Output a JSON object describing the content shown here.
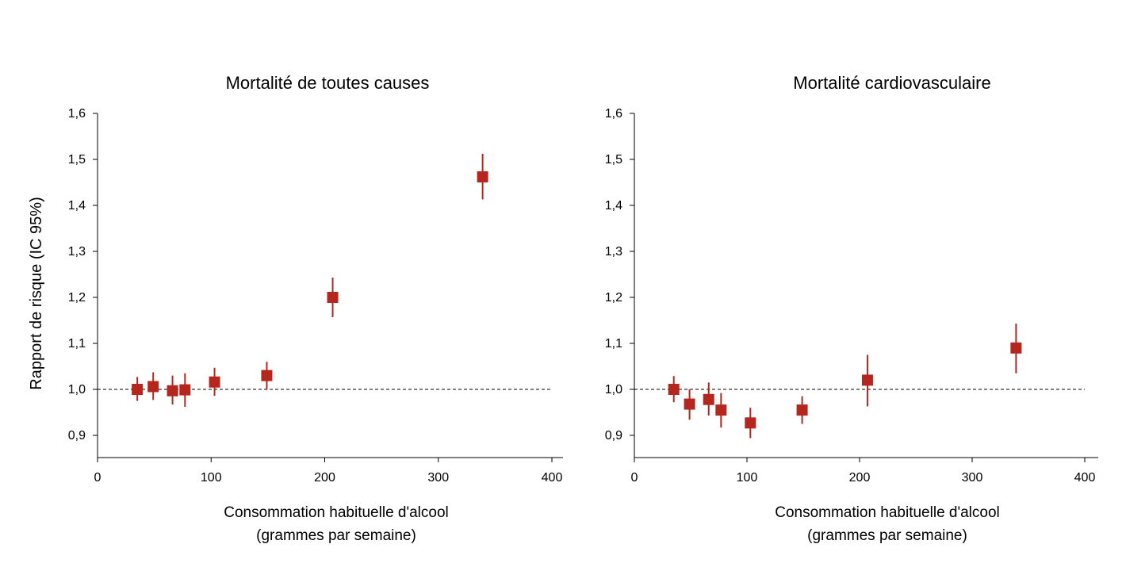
{
  "chart_data": [
    {
      "type": "scatter",
      "title": "Mortalité de toutes causes",
      "xlabel_lines": [
        "Consommation habituelle d'alcool",
        "(grammes par semaine)"
      ],
      "ylabel": "Rapport de risque (IC 95%)",
      "xlim": [
        0,
        400
      ],
      "ylim": [
        0.85,
        1.6
      ],
      "xticks": [
        0,
        100,
        200,
        300,
        400
      ],
      "xtick_labels": [
        "0",
        "100",
        "200",
        "300",
        "400"
      ],
      "yticks": [
        0.9,
        1.0,
        1.1,
        1.2,
        1.3,
        1.4,
        1.5,
        1.6
      ],
      "ytick_labels": [
        "0,9",
        "1,0",
        "1,1",
        "1,2",
        "1,3",
        "1,4",
        "1,5",
        "1,6"
      ],
      "reference_line": 1.0,
      "marker_color": "#b5261e",
      "points": [
        {
          "x": 35,
          "y": 1.0,
          "lo": 0.975,
          "hi": 1.027
        },
        {
          "x": 49,
          "y": 1.006,
          "lo": 0.977,
          "hi": 1.037
        },
        {
          "x": 66,
          "y": 0.997,
          "lo": 0.967,
          "hi": 1.03
        },
        {
          "x": 77,
          "y": 0.999,
          "lo": 0.962,
          "hi": 1.035
        },
        {
          "x": 103,
          "y": 1.016,
          "lo": 0.986,
          "hi": 1.047
        },
        {
          "x": 149,
          "y": 1.03,
          "lo": 1.0,
          "hi": 1.06
        },
        {
          "x": 207,
          "y": 1.2,
          "lo": 1.157,
          "hi": 1.243
        },
        {
          "x": 339,
          "y": 1.462,
          "lo": 1.413,
          "hi": 1.512
        }
      ]
    },
    {
      "type": "scatter",
      "title": "Mortalité cardiovasculaire",
      "xlabel_lines": [
        "Consommation habituelle d'alcool",
        "(grammes par semaine)"
      ],
      "ylabel": "",
      "xlim": [
        0,
        400
      ],
      "ylim": [
        0.85,
        1.6
      ],
      "xticks": [
        0,
        100,
        200,
        300,
        400
      ],
      "xtick_labels": [
        "0",
        "100",
        "200",
        "300",
        "400"
      ],
      "yticks": [
        0.9,
        1.0,
        1.1,
        1.2,
        1.3,
        1.4,
        1.5,
        1.6
      ],
      "ytick_labels": [
        "0,9",
        "1,0",
        "1,1",
        "1,2",
        "1,3",
        "1,4",
        "1,5",
        "1,6"
      ],
      "reference_line": 1.0,
      "marker_color": "#b5261e",
      "points": [
        {
          "x": 35,
          "y": 1.0,
          "lo": 0.972,
          "hi": 1.029
        },
        {
          "x": 49,
          "y": 0.968,
          "lo": 0.934,
          "hi": 1.0
        },
        {
          "x": 66,
          "y": 0.978,
          "lo": 0.943,
          "hi": 1.015
        },
        {
          "x": 77,
          "y": 0.955,
          "lo": 0.917,
          "hi": 0.992
        },
        {
          "x": 103,
          "y": 0.927,
          "lo": 0.894,
          "hi": 0.96
        },
        {
          "x": 149,
          "y": 0.955,
          "lo": 0.925,
          "hi": 0.985
        },
        {
          "x": 207,
          "y": 1.02,
          "lo": 0.963,
          "hi": 1.075
        },
        {
          "x": 339,
          "y": 1.09,
          "lo": 1.035,
          "hi": 1.143
        }
      ]
    }
  ]
}
